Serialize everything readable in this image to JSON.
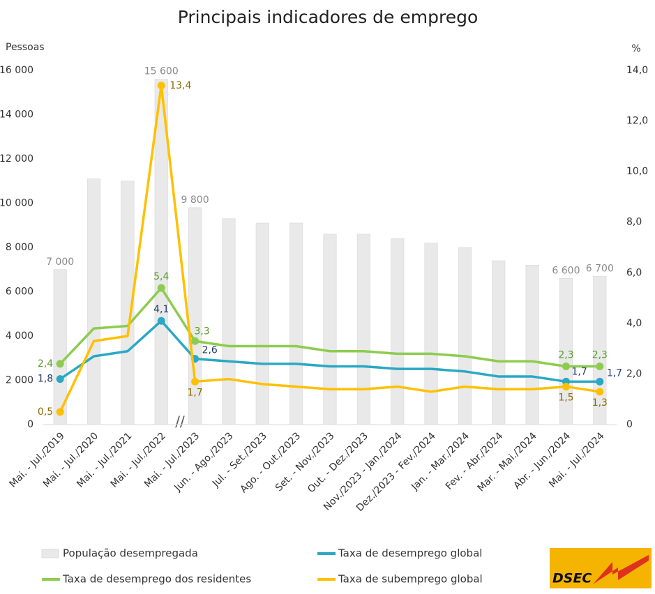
{
  "chart_data": {
    "type": "bar_line",
    "title": "Principais indicadores de emprego",
    "y_label": "Pessoas",
    "y2_label": "%",
    "annotation": "//",
    "logo": "DSEC",
    "categories": [
      "Mai. - Jul./2019",
      "Mai. - Jul./2020",
      "Mai. - Jul./2021",
      "Mai. - Jul./2022",
      "Mai. - Jul./2023",
      "Jun. - Ago./2023",
      "Jul. - Set./2023",
      "Ago. - Out./2023",
      "Set. - Nov./2023",
      "Out. - Dez./2023",
      "Nov./2023 - Jan./2024",
      "Dez./2023 - Fev./2024",
      "Jan. - Mar./2024",
      "Fev. - Abr./2024",
      "Mar. - Mai./2024",
      "Abr. - Jun./2024",
      "Mai. - Jul./2024"
    ],
    "series": [
      {
        "name": "População desempregada",
        "type": "bar",
        "color": "#e9e9e9",
        "values": [
          7000,
          11100,
          11000,
          15600,
          9800,
          9300,
          9100,
          9100,
          8600,
          8600,
          8400,
          8200,
          8000,
          7400,
          7200,
          6600,
          6700
        ],
        "value_labels": [
          "7 000",
          null,
          null,
          "15 600",
          "9 800",
          null,
          null,
          null,
          null,
          null,
          null,
          null,
          null,
          null,
          null,
          "6 600",
          "6 700"
        ]
      },
      {
        "name": "Taxa de desemprego global",
        "type": "line",
        "axis": "y2",
        "color": "#2aa8c4",
        "values": [
          1.8,
          2.7,
          2.9,
          4.1,
          2.6,
          2.5,
          2.4,
          2.4,
          2.3,
          2.3,
          2.2,
          2.2,
          2.1,
          1.9,
          1.9,
          1.7,
          1.7
        ],
        "value_labels": [
          "1,8",
          null,
          null,
          "4,1",
          "2,6",
          null,
          null,
          null,
          null,
          null,
          null,
          null,
          null,
          null,
          null,
          "1,7",
          "1,7"
        ]
      },
      {
        "name": "Taxa de desemprego dos residentes",
        "type": "line",
        "axis": "y2",
        "color": "#8dcc4f",
        "values": [
          2.4,
          3.8,
          3.9,
          5.4,
          3.3,
          3.1,
          3.1,
          3.1,
          2.9,
          2.9,
          2.8,
          2.8,
          2.7,
          2.5,
          2.5,
          2.3,
          2.3
        ],
        "value_labels": [
          "2,4",
          null,
          null,
          "5,4",
          "3,3",
          null,
          null,
          null,
          null,
          null,
          null,
          null,
          null,
          null,
          null,
          "2,3",
          "2,3"
        ]
      },
      {
        "name": "Taxa de subemprego global",
        "type": "line",
        "axis": "y2",
        "color": "#ffc000",
        "values": [
          0.5,
          3.3,
          3.5,
          13.4,
          1.7,
          1.8,
          1.6,
          1.5,
          1.4,
          1.4,
          1.5,
          1.3,
          1.5,
          1.4,
          1.4,
          1.5,
          1.3
        ],
        "value_labels": [
          "0,5",
          null,
          null,
          "13,4",
          "1,7",
          null,
          null,
          null,
          null,
          null,
          null,
          null,
          null,
          null,
          null,
          "1,5",
          "1,3"
        ]
      }
    ],
    "ylim": [
      0,
      16000
    ],
    "yticks": [
      0,
      {
        "value": 2000,
        "label": "2 000"
      },
      {
        "value": 4000,
        "label": "4 000"
      },
      {
        "value": 6000,
        "label": "6 000"
      },
      {
        "value": 8000,
        "label": "8 000"
      },
      {
        "value": 10000,
        "label": "10 000"
      },
      {
        "value": 12000,
        "label": "12 000"
      },
      {
        "value": 14000,
        "label": "14 000"
      },
      {
        "value": 16000,
        "label": "16 000"
      }
    ],
    "y2lim": [
      0,
      14
    ],
    "y2ticks": [
      0,
      {
        "value": 2,
        "label": "2,0"
      },
      {
        "value": 4,
        "label": "4,0"
      },
      {
        "value": 6,
        "label": "6,0"
      },
      {
        "value": 8,
        "label": "8,0"
      },
      {
        "value": 10,
        "label": "10,0"
      },
      {
        "value": 12,
        "label": "12,0"
      },
      {
        "value": 14,
        "label": "14,0"
      }
    ],
    "grid": false,
    "legend": "bottom"
  }
}
